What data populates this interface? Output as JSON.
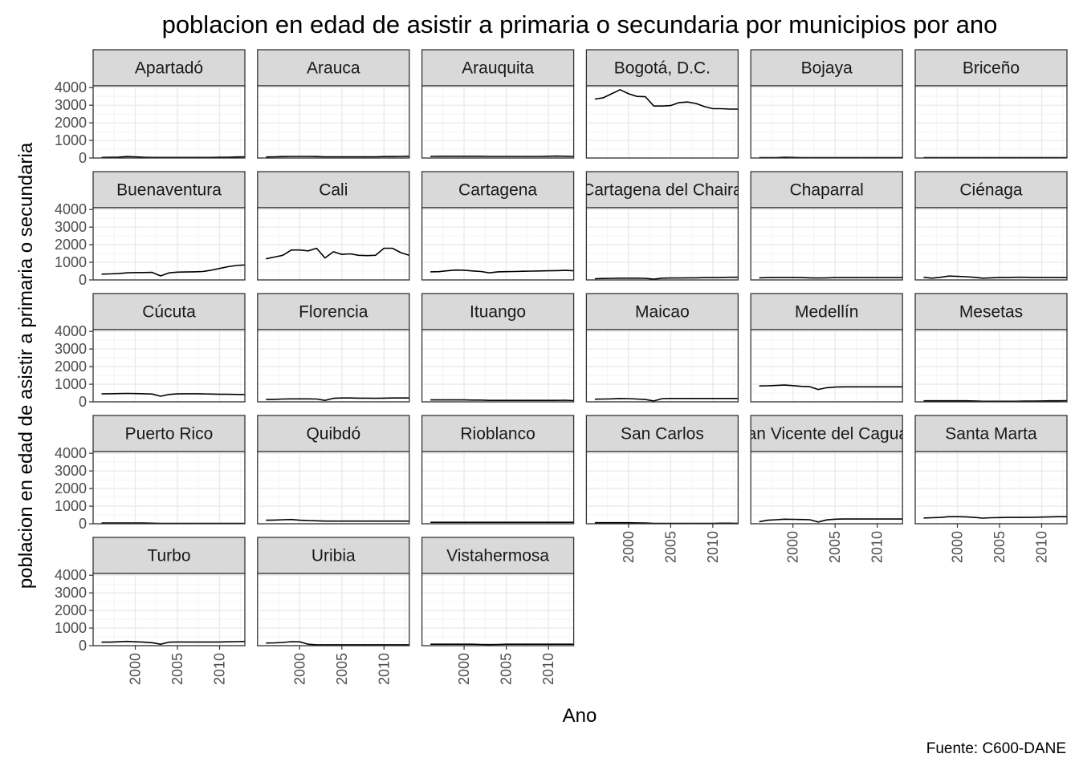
{
  "chart_data": {
    "type": "line",
    "title": "poblacion en edad de asistir a primaria o secundaria por municipios por ano",
    "xlabel": "Ano",
    "ylabel": "poblacion en edad de asistir a primaria o secundaria",
    "caption": "Fuente: C600-DANE",
    "xlim": [
      1995,
      2013
    ],
    "ylim": [
      0,
      4100
    ],
    "x_ticks": [
      2000,
      2005,
      2010
    ],
    "y_ticks": [
      0,
      1000,
      2000,
      3000,
      4000
    ],
    "grid": true,
    "x": [
      1996,
      1997,
      1998,
      1999,
      2000,
      2001,
      2002,
      2003,
      2004,
      2005,
      2006,
      2007,
      2008,
      2009,
      2010,
      2011,
      2012,
      2013
    ],
    "facets": [
      {
        "name": "Apartadó",
        "values": [
          30,
          40,
          50,
          80,
          70,
          40,
          30,
          30,
          30,
          30,
          30,
          30,
          30,
          30,
          40,
          40,
          60,
          70
        ]
      },
      {
        "name": "Arauca",
        "values": [
          60,
          70,
          80,
          90,
          90,
          90,
          80,
          70,
          70,
          70,
          70,
          70,
          70,
          70,
          80,
          80,
          90,
          100
        ]
      },
      {
        "name": "Arauquita",
        "values": [
          90,
          100,
          100,
          100,
          100,
          100,
          100,
          90,
          90,
          90,
          90,
          90,
          90,
          90,
          100,
          110,
          100,
          90
        ]
      },
      {
        "name": "Bogotá, D.C.",
        "values": [
          3350,
          3420,
          3650,
          3880,
          3650,
          3500,
          3480,
          2950,
          2950,
          2980,
          3150,
          3180,
          3100,
          2920,
          2800,
          2800,
          2780,
          2780
        ]
      },
      {
        "name": "Bojaya",
        "values": [
          20,
          20,
          25,
          40,
          30,
          25,
          20,
          20,
          20,
          20,
          20,
          20,
          20,
          20,
          20,
          20,
          20,
          20
        ]
      },
      {
        "name": "Briceño",
        "values": [
          20,
          20,
          20,
          20,
          20,
          20,
          20,
          20,
          20,
          20,
          20,
          20,
          20,
          20,
          20,
          20,
          20,
          20
        ]
      },
      {
        "name": "Buenaventura",
        "values": [
          330,
          340,
          360,
          400,
          420,
          420,
          430,
          230,
          400,
          440,
          450,
          460,
          480,
          550,
          650,
          750,
          820,
          850
        ]
      },
      {
        "name": "Cali",
        "values": [
          1200,
          1300,
          1400,
          1700,
          1700,
          1650,
          1800,
          1250,
          1600,
          1450,
          1480,
          1400,
          1380,
          1400,
          1800,
          1800,
          1550,
          1400
        ]
      },
      {
        "name": "Cartagena",
        "values": [
          460,
          470,
          520,
          560,
          550,
          510,
          480,
          400,
          460,
          470,
          480,
          490,
          500,
          510,
          520,
          530,
          540,
          520
        ]
      },
      {
        "name": "Cartagena del Chaira",
        "values": [
          70,
          80,
          90,
          100,
          100,
          100,
          90,
          40,
          100,
          110,
          110,
          120,
          120,
          130,
          130,
          140,
          150,
          150
        ]
      },
      {
        "name": "Chaparral",
        "values": [
          120,
          130,
          140,
          140,
          140,
          130,
          120,
          110,
          120,
          130,
          130,
          130,
          130,
          130,
          130,
          130,
          130,
          130
        ]
      },
      {
        "name": "Ciénaga",
        "values": [
          150,
          100,
          150,
          220,
          200,
          180,
          150,
          100,
          120,
          140,
          140,
          150,
          150,
          140,
          140,
          140,
          140,
          130
        ]
      },
      {
        "name": "Cúcuta",
        "values": [
          450,
          460,
          470,
          480,
          470,
          460,
          440,
          320,
          420,
          450,
          460,
          460,
          450,
          440,
          430,
          430,
          420,
          420
        ]
      },
      {
        "name": "Florencia",
        "values": [
          130,
          140,
          160,
          170,
          170,
          170,
          160,
          80,
          200,
          220,
          220,
          210,
          210,
          200,
          210,
          220,
          220,
          220
        ]
      },
      {
        "name": "Ituango",
        "values": [
          110,
          110,
          110,
          110,
          110,
          100,
          100,
          80,
          80,
          80,
          80,
          80,
          80,
          80,
          80,
          80,
          90,
          70
        ]
      },
      {
        "name": "Maicao",
        "values": [
          150,
          160,
          170,
          190,
          180,
          160,
          130,
          50,
          180,
          190,
          190,
          190,
          190,
          190,
          190,
          190,
          190,
          190
        ]
      },
      {
        "name": "Medellín",
        "values": [
          900,
          910,
          930,
          950,
          920,
          880,
          860,
          700,
          800,
          840,
          850,
          850,
          850,
          850,
          850,
          850,
          850,
          850
        ]
      },
      {
        "name": "Mesetas",
        "values": [
          60,
          60,
          60,
          60,
          60,
          60,
          50,
          30,
          30,
          30,
          30,
          30,
          40,
          40,
          50,
          60,
          60,
          70
        ]
      },
      {
        "name": "Puerto Rico",
        "values": [
          40,
          40,
          40,
          40,
          40,
          40,
          30,
          20,
          20,
          20,
          20,
          20,
          20,
          20,
          20,
          20,
          20,
          20
        ]
      },
      {
        "name": "Quibdó",
        "values": [
          200,
          210,
          230,
          240,
          200,
          180,
          170,
          150,
          150,
          150,
          150,
          150,
          150,
          150,
          150,
          150,
          150,
          150
        ]
      },
      {
        "name": "Rioblanco",
        "values": [
          80,
          80,
          80,
          80,
          80,
          80,
          80,
          80,
          80,
          80,
          80,
          80,
          80,
          80,
          80,
          80,
          80,
          80
        ]
      },
      {
        "name": "San Carlos",
        "values": [
          60,
          60,
          60,
          60,
          60,
          50,
          40,
          20,
          20,
          20,
          20,
          20,
          20,
          20,
          20,
          30,
          30,
          20
        ]
      },
      {
        "name": "San Vicente del Caguan",
        "values": [
          120,
          200,
          230,
          260,
          250,
          240,
          230,
          100,
          220,
          260,
          270,
          270,
          270,
          270,
          270,
          270,
          270,
          270
        ]
      },
      {
        "name": "Santa Marta",
        "values": [
          330,
          340,
          360,
          400,
          400,
          390,
          360,
          320,
          340,
          350,
          360,
          360,
          360,
          370,
          380,
          390,
          400,
          400
        ]
      },
      {
        "name": "Turbo",
        "values": [
          200,
          200,
          220,
          240,
          220,
          200,
          170,
          80,
          200,
          210,
          210,
          210,
          210,
          210,
          210,
          220,
          230,
          240
        ]
      },
      {
        "name": "Uribia",
        "values": [
          150,
          160,
          180,
          230,
          220,
          80,
          50,
          50,
          50,
          50,
          50,
          50,
          50,
          50,
          50,
          50,
          50,
          50
        ]
      },
      {
        "name": "Vistahermosa",
        "values": [
          80,
          80,
          80,
          80,
          80,
          80,
          70,
          60,
          70,
          80,
          80,
          80,
          80,
          80,
          80,
          80,
          80,
          80
        ]
      }
    ]
  }
}
